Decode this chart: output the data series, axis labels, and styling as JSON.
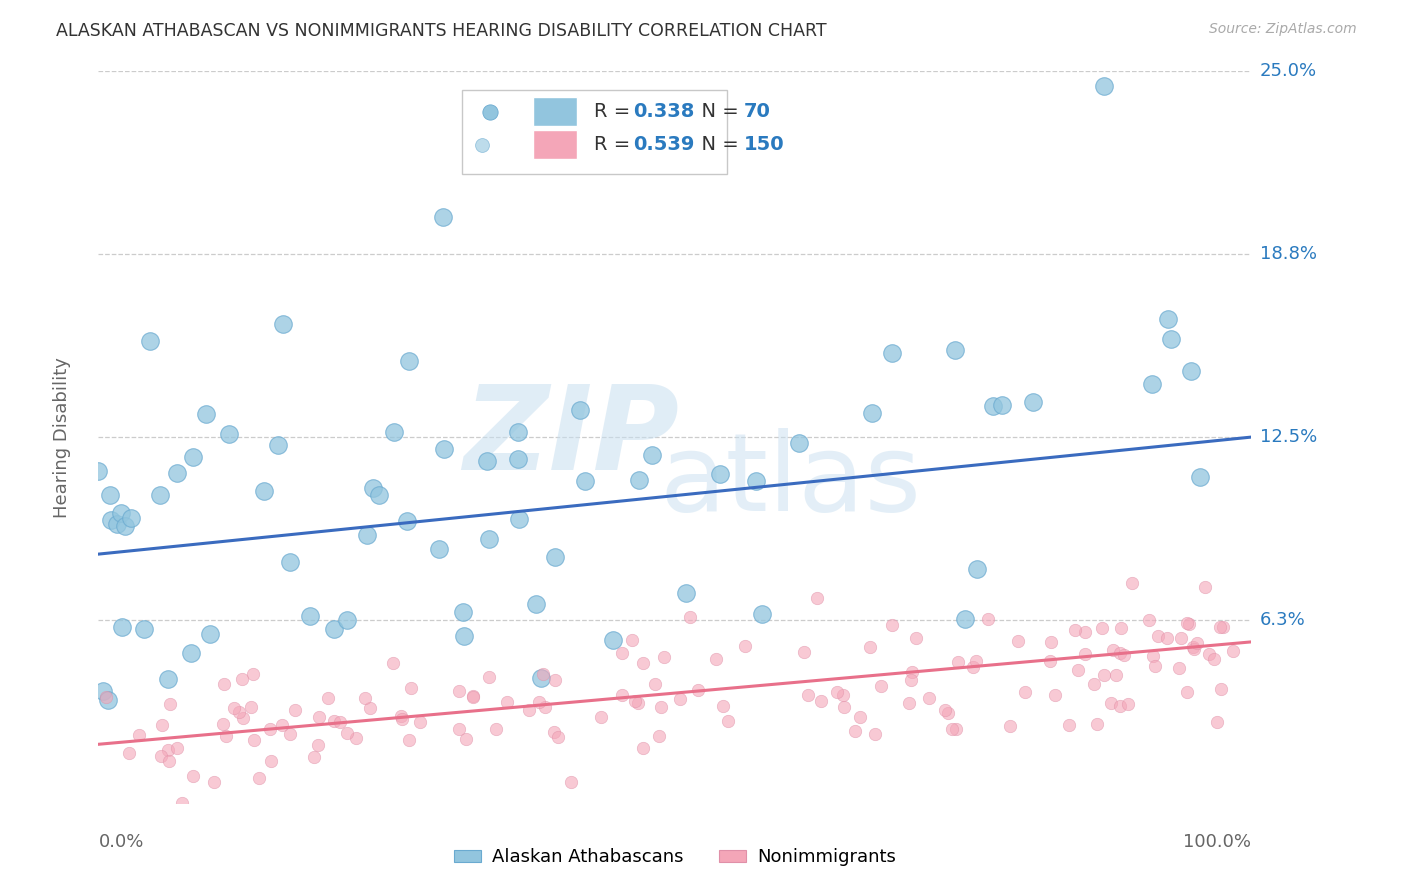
{
  "title": "ALASKAN ATHABASCAN VS NONIMMIGRANTS HEARING DISABILITY CORRELATION CHART",
  "source": "Source: ZipAtlas.com",
  "ylabel": "Hearing Disability",
  "xlim": [
    0,
    1
  ],
  "ylim": [
    0,
    0.25
  ],
  "yticks": [
    0.0625,
    0.125,
    0.1875,
    0.25
  ],
  "ytick_labels": [
    "6.3%",
    "12.5%",
    "18.8%",
    "25.0%"
  ],
  "xtick_labels": [
    "0.0%",
    "100.0%"
  ],
  "blue_R": 0.338,
  "blue_N": 70,
  "pink_R": 0.539,
  "pink_N": 150,
  "blue_color": "#92c5de",
  "pink_color": "#f4a6b8",
  "blue_line_color": "#3a6bbf",
  "pink_line_color": "#e8708a",
  "legend_label_blue": "Alaskan Athabascans",
  "legend_label_pink": "Nonimmigrants",
  "background_color": "#ffffff",
  "grid_color": "#cccccc",
  "title_color": "#333333",
  "axis_label_color": "#666666",
  "blue_line_x0": 0.0,
  "blue_line_y0": 0.085,
  "blue_line_x1": 1.0,
  "blue_line_y1": 0.125,
  "pink_line_x0": 0.0,
  "pink_line_y0": 0.02,
  "pink_line_x1": 1.0,
  "pink_line_y1": 0.055,
  "legend_R_N_color": "#2a7abf",
  "watermark_zip_color": "#c8dff0",
  "watermark_atlas_color": "#c8dff0"
}
